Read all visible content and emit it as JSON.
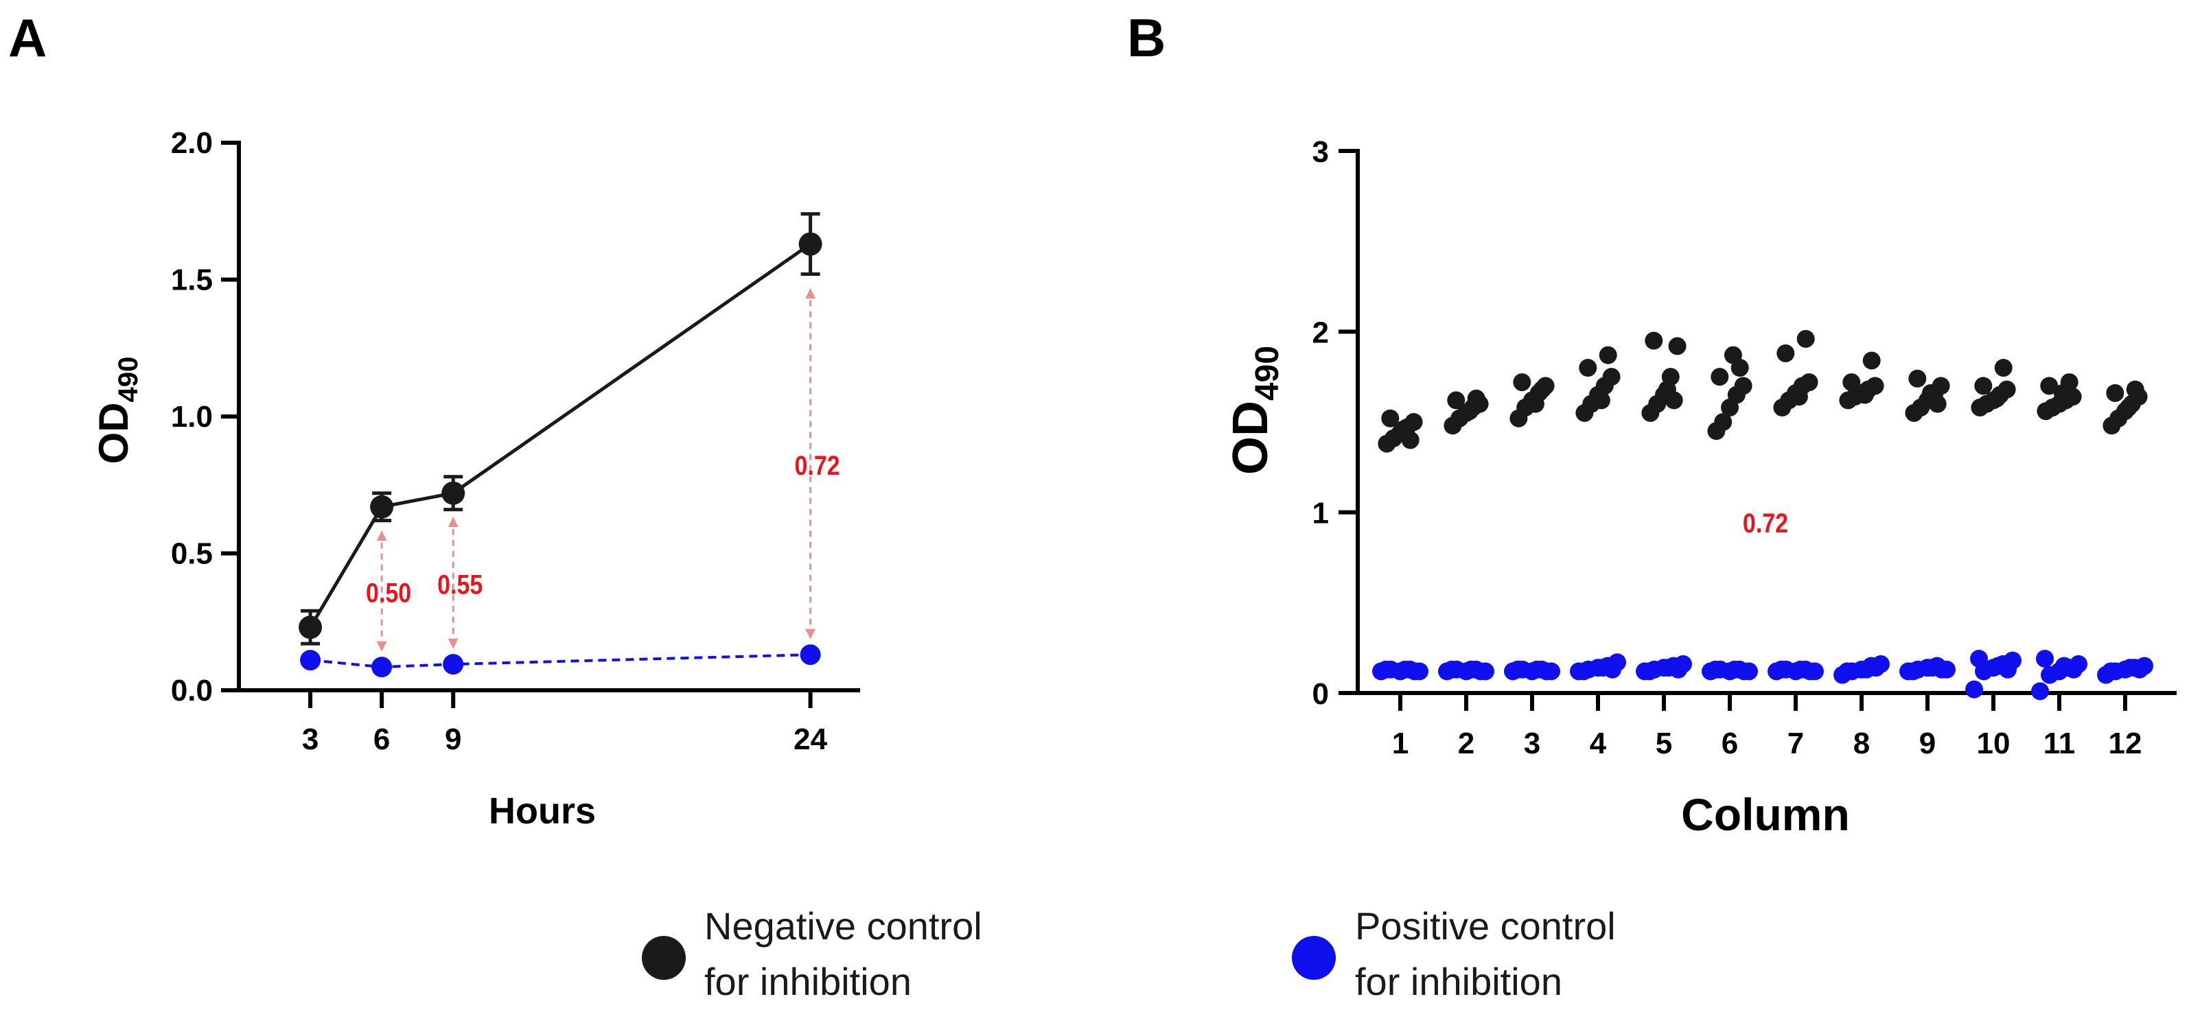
{
  "colors": {
    "negative": "#1a1a1a",
    "positive": "#1010ee",
    "annotation_text": "#e8141e",
    "annotation_arrow": "#e89090"
  },
  "chart_data": [
    {
      "panel": "A",
      "type": "line",
      "xlabel": "Hours",
      "ylabel": "OD",
      "ylabel_sub": "490",
      "ylim": [
        0,
        2.0
      ],
      "yticks": [
        "0.0",
        "0.5",
        "1.0",
        "1.5",
        "2.0"
      ],
      "x": [
        3,
        6,
        9,
        24
      ],
      "xticks": [
        "3",
        "6",
        "9",
        "24"
      ],
      "series": [
        {
          "name": "Negative control for inhibition",
          "style": "solid",
          "values": [
            0.23,
            0.67,
            0.72,
            1.63
          ],
          "errors": [
            0.06,
            0.05,
            0.06,
            0.11
          ]
        },
        {
          "name": "Positive control for inhibition",
          "style": "dashed",
          "values": [
            0.11,
            0.085,
            0.095,
            0.13
          ],
          "errors": [
            0,
            0,
            0,
            0
          ]
        }
      ],
      "annotations": [
        {
          "x": 6,
          "text": "0.50"
        },
        {
          "x": 9,
          "text": "0.55"
        },
        {
          "x": 24,
          "text": "0.72"
        }
      ]
    },
    {
      "panel": "B",
      "type": "scatter",
      "xlabel": "Column",
      "ylabel": "OD",
      "ylabel_sub": "490",
      "ylim": [
        0,
        3
      ],
      "yticks": [
        "0",
        "1",
        "2",
        "3"
      ],
      "categories": [
        "1",
        "2",
        "3",
        "4",
        "5",
        "6",
        "7",
        "8",
        "9",
        "10",
        "11",
        "12"
      ],
      "annotation": "0.72",
      "series": [
        {
          "name": "Negative control for inhibition",
          "values": [
            [
              1.38,
              1.41,
              1.44,
              1.47,
              1.5,
              1.52,
              1.4,
              1.46
            ],
            [
              1.48,
              1.52,
              1.55,
              1.58,
              1.6,
              1.62,
              1.63,
              1.56
            ],
            [
              1.52,
              1.58,
              1.62,
              1.66,
              1.7,
              1.72,
              1.68,
              1.6
            ],
            [
              1.55,
              1.6,
              1.65,
              1.7,
              1.75,
              1.8,
              1.87,
              1.62
            ],
            [
              1.55,
              1.6,
              1.65,
              1.75,
              1.92,
              1.95,
              1.62,
              1.68
            ],
            [
              1.45,
              1.5,
              1.58,
              1.65,
              1.7,
              1.75,
              1.8,
              1.87
            ],
            [
              1.58,
              1.62,
              1.66,
              1.7,
              1.72,
              1.88,
              1.96,
              1.64
            ],
            [
              1.62,
              1.64,
              1.66,
              1.68,
              1.7,
              1.72,
              1.84,
              1.65
            ],
            [
              1.55,
              1.58,
              1.62,
              1.65,
              1.7,
              1.74,
              1.6,
              1.66
            ],
            [
              1.58,
              1.6,
              1.62,
              1.65,
              1.68,
              1.7,
              1.8,
              1.63
            ],
            [
              1.56,
              1.58,
              1.6,
              1.62,
              1.64,
              1.7,
              1.72,
              1.66
            ],
            [
              1.48,
              1.52,
              1.56,
              1.6,
              1.64,
              1.66,
              1.68,
              1.58
            ]
          ]
        },
        {
          "name": "Positive control for inhibition",
          "values": [
            [
              0.12,
              0.13,
              0.12,
              0.13,
              0.12,
              0.13,
              0.12,
              0.13
            ],
            [
              0.12,
              0.13,
              0.12,
              0.13,
              0.12,
              0.13,
              0.12,
              0.13
            ],
            [
              0.12,
              0.13,
              0.12,
              0.13,
              0.12,
              0.13,
              0.12,
              0.13
            ],
            [
              0.12,
              0.13,
              0.14,
              0.15,
              0.17,
              0.12,
              0.13,
              0.14
            ],
            [
              0.12,
              0.13,
              0.14,
              0.15,
              0.16,
              0.12,
              0.13,
              0.14
            ],
            [
              0.12,
              0.13,
              0.12,
              0.13,
              0.12,
              0.13,
              0.12,
              0.13
            ],
            [
              0.12,
              0.13,
              0.12,
              0.13,
              0.12,
              0.13,
              0.12,
              0.13
            ],
            [
              0.1,
              0.12,
              0.13,
              0.15,
              0.16,
              0.12,
              0.14,
              0.13
            ],
            [
              0.12,
              0.13,
              0.14,
              0.15,
              0.13,
              0.12,
              0.13,
              0.14
            ],
            [
              0.02,
              0.12,
              0.14,
              0.16,
              0.18,
              0.19,
              0.13,
              0.15
            ],
            [
              0.01,
              0.1,
              0.12,
              0.14,
              0.16,
              0.19,
              0.13,
              0.15
            ],
            [
              0.1,
              0.12,
              0.13,
              0.14,
              0.15,
              0.12,
              0.13,
              0.14
            ]
          ]
        }
      ]
    }
  ],
  "legend": [
    {
      "line1": "Negative control",
      "line2": "for inhibition"
    },
    {
      "line1": "Positive control",
      "line2": "for inhibition"
    }
  ]
}
